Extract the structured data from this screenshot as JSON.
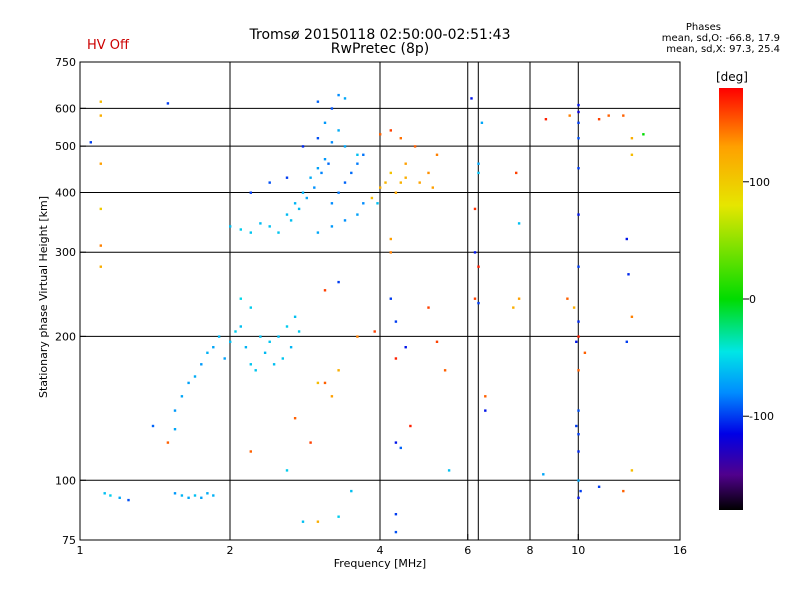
{
  "header": {
    "title_line1": "Tromsø 20150118 02:50:00-02:51:43",
    "title_line2": "RwPretec (8p)",
    "status": "HV Off",
    "status_color": "#cc0000"
  },
  "phase_box": {
    "heading": "Phases",
    "line_o": "mean, sd,O: -66.8, 17.9",
    "line_x": "mean, sd,X:  97.3, 25.4"
  },
  "colorbar": {
    "unit": "[deg]",
    "range": [
      -180,
      180
    ],
    "ticks": [
      "100",
      "0",
      "-100"
    ],
    "tick_values": [
      100,
      0,
      -100
    ]
  },
  "chart_data": {
    "type": "scatter",
    "title": "Tromsø 20150118 02:50:00-02:51:43",
    "subtitle": "RwPretec (8p)",
    "xlabel": "Frequency [MHz]",
    "ylabel": "Stationary phase Virtual Height [km]",
    "x_scale": "log",
    "y_scale": "log",
    "xlim": [
      1,
      16
    ],
    "ylim": [
      75,
      750
    ],
    "x_ticks": [
      1,
      2,
      4,
      6,
      8,
      10,
      16
    ],
    "x_tick_labels": [
      "1",
      "2",
      "4",
      "6",
      "8",
      "10",
      "16"
    ],
    "y_ticks": [
      75,
      100,
      200,
      300,
      400,
      500,
      600,
      750
    ],
    "y_tick_labels": [
      "75",
      "100",
      "200",
      "300",
      "400",
      "500",
      "600",
      "750"
    ],
    "grid": true,
    "x_gridlines": [
      2,
      4,
      6,
      6.3,
      8,
      10
    ],
    "y_gridlines": [
      100,
      200,
      300,
      400,
      500,
      600
    ],
    "color_variable": "phase [deg]",
    "points": [
      [
        1.12,
        94,
        -60
      ],
      [
        1.15,
        93,
        -55
      ],
      [
        1.2,
        92,
        -70
      ],
      [
        1.25,
        91,
        -95
      ],
      [
        1.55,
        94,
        -75
      ],
      [
        1.6,
        93,
        -65
      ],
      [
        1.65,
        92,
        -70
      ],
      [
        1.7,
        93,
        -60
      ],
      [
        1.75,
        92,
        -72
      ],
      [
        1.8,
        94,
        -68
      ],
      [
        1.85,
        93,
        -66
      ],
      [
        1.1,
        620,
        110
      ],
      [
        1.1,
        580,
        120
      ],
      [
        1.1,
        460,
        130
      ],
      [
        1.1,
        370,
        100
      ],
      [
        1.1,
        310,
        140
      ],
      [
        1.1,
        280,
        120
      ],
      [
        1.05,
        510,
        -100
      ],
      [
        1.5,
        615,
        -100
      ],
      [
        1.4,
        130,
        -90
      ],
      [
        1.55,
        128,
        -70
      ],
      [
        1.5,
        120,
        150
      ],
      [
        1.55,
        140,
        -75
      ],
      [
        1.6,
        150,
        -70
      ],
      [
        1.65,
        160,
        -72
      ],
      [
        1.7,
        165,
        -68
      ],
      [
        1.75,
        175,
        -74
      ],
      [
        1.8,
        185,
        -66
      ],
      [
        1.85,
        190,
        -70
      ],
      [
        1.9,
        200,
        -64
      ],
      [
        1.95,
        180,
        -72
      ],
      [
        2.0,
        195,
        -60
      ],
      [
        2.05,
        205,
        -55
      ],
      [
        2.1,
        210,
        -60
      ],
      [
        2.15,
        190,
        -65
      ],
      [
        2.2,
        175,
        -58
      ],
      [
        2.1,
        240,
        -50
      ],
      [
        2.2,
        230,
        -55
      ],
      [
        2.3,
        200,
        -60
      ],
      [
        2.4,
        195,
        -58
      ],
      [
        2.5,
        200,
        -62
      ],
      [
        2.6,
        210,
        -56
      ],
      [
        2.7,
        220,
        -60
      ],
      [
        2.25,
        170,
        -58
      ],
      [
        2.35,
        185,
        -62
      ],
      [
        2.45,
        175,
        -60
      ],
      [
        2.55,
        180,
        -58
      ],
      [
        2.65,
        190,
        -64
      ],
      [
        2.75,
        205,
        -56
      ],
      [
        2.0,
        340,
        -60
      ],
      [
        2.1,
        335,
        -55
      ],
      [
        2.2,
        330,
        -58
      ],
      [
        2.3,
        345,
        -62
      ],
      [
        2.4,
        340,
        -60
      ],
      [
        2.5,
        330,
        -58
      ],
      [
        2.6,
        360,
        -62
      ],
      [
        2.7,
        380,
        -64
      ],
      [
        2.8,
        400,
        -66
      ],
      [
        2.9,
        430,
        -68
      ],
      [
        3.0,
        450,
        -72
      ],
      [
        3.1,
        470,
        -75
      ],
      [
        2.65,
        350,
        -60
      ],
      [
        2.75,
        370,
        -62
      ],
      [
        2.85,
        390,
        -70
      ],
      [
        2.95,
        410,
        -78
      ],
      [
        3.05,
        440,
        -82
      ],
      [
        3.15,
        460,
        -88
      ],
      [
        3.2,
        380,
        -80
      ],
      [
        3.3,
        400,
        -85
      ],
      [
        3.4,
        420,
        -90
      ],
      [
        3.5,
        440,
        -88
      ],
      [
        3.6,
        460,
        -84
      ],
      [
        3.7,
        480,
        -86
      ],
      [
        3.0,
        330,
        -70
      ],
      [
        3.2,
        340,
        -75
      ],
      [
        3.4,
        350,
        -78
      ],
      [
        3.6,
        360,
        -72
      ],
      [
        3.7,
        380,
        -80
      ],
      [
        3.0,
        620,
        -90
      ],
      [
        3.2,
        600,
        -95
      ],
      [
        3.3,
        640,
        -80
      ],
      [
        3.4,
        630,
        -70
      ],
      [
        3.1,
        560,
        -75
      ],
      [
        3.3,
        540,
        -68
      ],
      [
        2.2,
        400,
        -100
      ],
      [
        2.4,
        420,
        -95
      ],
      [
        2.6,
        430,
        -100
      ],
      [
        2.8,
        500,
        -105
      ],
      [
        3.0,
        520,
        -95
      ],
      [
        3.2,
        510,
        -80
      ],
      [
        3.4,
        500,
        -70
      ],
      [
        3.6,
        480,
        -60
      ],
      [
        3.85,
        390,
        110
      ],
      [
        4.0,
        410,
        120
      ],
      [
        4.1,
        420,
        115
      ],
      [
        4.2,
        440,
        105
      ],
      [
        4.3,
        400,
        125
      ],
      [
        4.4,
        420,
        118
      ],
      [
        4.5,
        460,
        130
      ],
      [
        3.95,
        380,
        -60
      ],
      [
        4.0,
        530,
        150
      ],
      [
        4.2,
        540,
        160
      ],
      [
        4.4,
        520,
        145
      ],
      [
        4.7,
        500,
        150
      ],
      [
        4.5,
        430,
        120
      ],
      [
        4.8,
        420,
        128
      ],
      [
        5.0,
        440,
        135
      ],
      [
        5.1,
        410,
        130
      ],
      [
        5.2,
        480,
        140
      ],
      [
        3.9,
        205,
        160
      ],
      [
        3.6,
        200,
        140
      ],
      [
        3.3,
        170,
        120
      ],
      [
        3.1,
        160,
        150
      ],
      [
        3.2,
        150,
        130
      ],
      [
        3.0,
        160,
        110
      ],
      [
        2.7,
        135,
        150
      ],
      [
        2.2,
        115,
        150
      ],
      [
        2.9,
        120,
        160
      ],
      [
        3.3,
        260,
        -100
      ],
      [
        3.1,
        250,
        160
      ],
      [
        4.2,
        240,
        -100
      ],
      [
        4.3,
        215,
        -100
      ],
      [
        4.5,
        190,
        -110
      ],
      [
        4.3,
        180,
        170
      ],
      [
        4.3,
        120,
        -110
      ],
      [
        4.4,
        117,
        -90
      ],
      [
        4.6,
        130,
        170
      ],
      [
        4.3,
        85,
        -100
      ],
      [
        4.3,
        78,
        -95
      ],
      [
        3.3,
        84,
        -55
      ],
      [
        2.8,
        82,
        -60
      ],
      [
        3.0,
        82,
        120
      ],
      [
        2.6,
        105,
        -55
      ],
      [
        3.5,
        95,
        -60
      ],
      [
        4.2,
        300,
        140
      ],
      [
        4.2,
        320,
        130
      ],
      [
        5.0,
        230,
        160
      ],
      [
        5.2,
        195,
        160
      ],
      [
        5.4,
        170,
        150
      ],
      [
        5.5,
        105,
        -60
      ],
      [
        6.1,
        630,
        -110
      ],
      [
        6.3,
        460,
        -70
      ],
      [
        6.3,
        440,
        -60
      ],
      [
        6.4,
        560,
        -70
      ],
      [
        6.2,
        370,
        165
      ],
      [
        6.2,
        300,
        -110
      ],
      [
        6.3,
        280,
        170
      ],
      [
        6.2,
        240,
        160
      ],
      [
        6.5,
        150,
        150
      ],
      [
        6.5,
        140,
        -110
      ],
      [
        6.3,
        235,
        -100
      ],
      [
        7.5,
        440,
        160
      ],
      [
        7.6,
        345,
        -60
      ],
      [
        7.6,
        240,
        130
      ],
      [
        7.4,
        230,
        120
      ],
      [
        8.6,
        570,
        170
      ],
      [
        9.6,
        580,
        140
      ],
      [
        9.5,
        240,
        150
      ],
      [
        9.8,
        230,
        120
      ],
      [
        10.0,
        610,
        -110
      ],
      [
        10.0,
        590,
        -120
      ],
      [
        10.0,
        560,
        -100
      ],
      [
        10.0,
        520,
        -95
      ],
      [
        10.0,
        450,
        -100
      ],
      [
        10.0,
        360,
        -110
      ],
      [
        10.0,
        280,
        -100
      ],
      [
        10.0,
        215,
        -105
      ],
      [
        10.0,
        200,
        170
      ],
      [
        10.0,
        170,
        150
      ],
      [
        10.0,
        140,
        -95
      ],
      [
        10.0,
        125,
        -100
      ],
      [
        10.0,
        115,
        -105
      ],
      [
        10.0,
        100,
        -70
      ],
      [
        10.0,
        92,
        -110
      ],
      [
        10.1,
        95,
        -100
      ],
      [
        9.9,
        195,
        -110
      ],
      [
        9.9,
        130,
        -100
      ],
      [
        10.3,
        185,
        150
      ],
      [
        11.0,
        570,
        160
      ],
      [
        11.5,
        580,
        150
      ],
      [
        12.3,
        580,
        150
      ],
      [
        12.8,
        520,
        120
      ],
      [
        12.5,
        320,
        -110
      ],
      [
        12.6,
        270,
        -105
      ],
      [
        12.8,
        220,
        140
      ],
      [
        12.5,
        195,
        -100
      ],
      [
        12.8,
        105,
        110
      ],
      [
        12.3,
        95,
        150
      ],
      [
        11.0,
        97,
        -100
      ],
      [
        13.5,
        530,
        0
      ],
      [
        12.8,
        480,
        110
      ],
      [
        8.5,
        103,
        -70
      ]
    ]
  }
}
